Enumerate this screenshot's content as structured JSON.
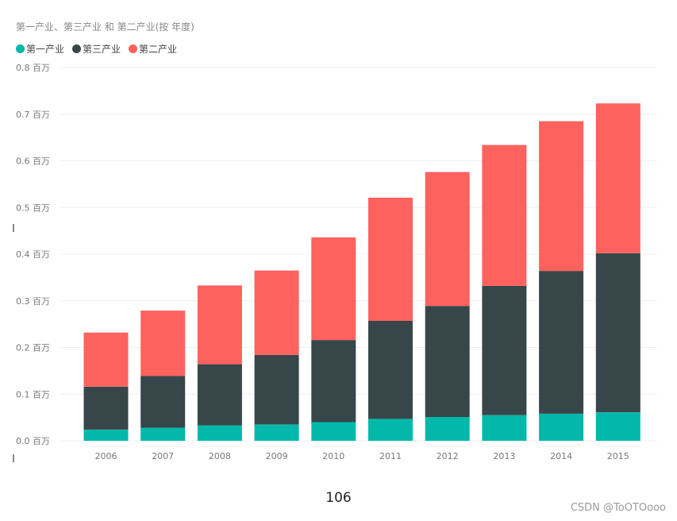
{
  "chart_data": {
    "type": "bar",
    "stacked": true,
    "title": "第一产业、第三产业 和 第二产业(按 年度)",
    "xlabel": "",
    "ylabel": "",
    "categories": [
      "2006",
      "2007",
      "2008",
      "2009",
      "2010",
      "2011",
      "2012",
      "2013",
      "2014",
      "2015"
    ],
    "series": [
      {
        "name": "第一产业",
        "color": "#01B8AA",
        "values": [
          0.024,
          0.028,
          0.033,
          0.035,
          0.04,
          0.047,
          0.051,
          0.055,
          0.058,
          0.061
        ]
      },
      {
        "name": "第三产业",
        "color": "#374649",
        "values": [
          0.092,
          0.111,
          0.131,
          0.149,
          0.176,
          0.21,
          0.238,
          0.277,
          0.306,
          0.341
        ]
      },
      {
        "name": "第二产业",
        "color": "#FD625E",
        "values": [
          0.116,
          0.14,
          0.169,
          0.181,
          0.22,
          0.264,
          0.287,
          0.302,
          0.321,
          0.321
        ]
      }
    ],
    "ylim": [
      0,
      0.8
    ],
    "yticks": [
      "0.0 百万",
      "0.1 百万",
      "0.2 百万",
      "0.3 百万",
      "0.4 百万",
      "0.5 百万",
      "0.6 百万",
      "0.7 百万",
      "0.8 百万"
    ],
    "grid": true,
    "legend_position": "top-left"
  },
  "footer": {
    "page_number": "106",
    "watermark": "CSDN @ToOTOooo"
  },
  "colors": {
    "grid": "#EFEFEF",
    "tick_text": "#777777"
  }
}
